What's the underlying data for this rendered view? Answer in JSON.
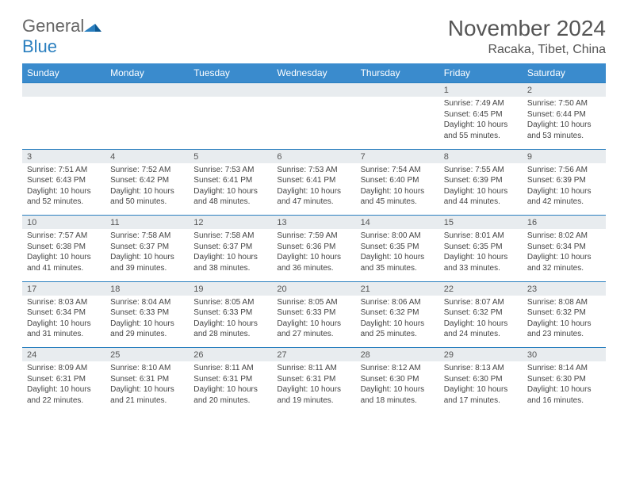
{
  "brand": {
    "general": "General",
    "blue": "Blue"
  },
  "title": "November 2024",
  "location": "Racaka, Tibet, China",
  "colors": {
    "header_bg": "#3a8bcd",
    "row_border": "#2a7fbf",
    "daynum_bg": "#e8ecef",
    "text": "#444",
    "title_color": "#555"
  },
  "day_headers": [
    "Sunday",
    "Monday",
    "Tuesday",
    "Wednesday",
    "Thursday",
    "Friday",
    "Saturday"
  ],
  "weeks": [
    [
      {
        "n": "",
        "sr": "",
        "ss": "",
        "dl": ""
      },
      {
        "n": "",
        "sr": "",
        "ss": "",
        "dl": ""
      },
      {
        "n": "",
        "sr": "",
        "ss": "",
        "dl": ""
      },
      {
        "n": "",
        "sr": "",
        "ss": "",
        "dl": ""
      },
      {
        "n": "",
        "sr": "",
        "ss": "",
        "dl": ""
      },
      {
        "n": "1",
        "sr": "Sunrise: 7:49 AM",
        "ss": "Sunset: 6:45 PM",
        "dl": "Daylight: 10 hours and 55 minutes."
      },
      {
        "n": "2",
        "sr": "Sunrise: 7:50 AM",
        "ss": "Sunset: 6:44 PM",
        "dl": "Daylight: 10 hours and 53 minutes."
      }
    ],
    [
      {
        "n": "3",
        "sr": "Sunrise: 7:51 AM",
        "ss": "Sunset: 6:43 PM",
        "dl": "Daylight: 10 hours and 52 minutes."
      },
      {
        "n": "4",
        "sr": "Sunrise: 7:52 AM",
        "ss": "Sunset: 6:42 PM",
        "dl": "Daylight: 10 hours and 50 minutes."
      },
      {
        "n": "5",
        "sr": "Sunrise: 7:53 AM",
        "ss": "Sunset: 6:41 PM",
        "dl": "Daylight: 10 hours and 48 minutes."
      },
      {
        "n": "6",
        "sr": "Sunrise: 7:53 AM",
        "ss": "Sunset: 6:41 PM",
        "dl": "Daylight: 10 hours and 47 minutes."
      },
      {
        "n": "7",
        "sr": "Sunrise: 7:54 AM",
        "ss": "Sunset: 6:40 PM",
        "dl": "Daylight: 10 hours and 45 minutes."
      },
      {
        "n": "8",
        "sr": "Sunrise: 7:55 AM",
        "ss": "Sunset: 6:39 PM",
        "dl": "Daylight: 10 hours and 44 minutes."
      },
      {
        "n": "9",
        "sr": "Sunrise: 7:56 AM",
        "ss": "Sunset: 6:39 PM",
        "dl": "Daylight: 10 hours and 42 minutes."
      }
    ],
    [
      {
        "n": "10",
        "sr": "Sunrise: 7:57 AM",
        "ss": "Sunset: 6:38 PM",
        "dl": "Daylight: 10 hours and 41 minutes."
      },
      {
        "n": "11",
        "sr": "Sunrise: 7:58 AM",
        "ss": "Sunset: 6:37 PM",
        "dl": "Daylight: 10 hours and 39 minutes."
      },
      {
        "n": "12",
        "sr": "Sunrise: 7:58 AM",
        "ss": "Sunset: 6:37 PM",
        "dl": "Daylight: 10 hours and 38 minutes."
      },
      {
        "n": "13",
        "sr": "Sunrise: 7:59 AM",
        "ss": "Sunset: 6:36 PM",
        "dl": "Daylight: 10 hours and 36 minutes."
      },
      {
        "n": "14",
        "sr": "Sunrise: 8:00 AM",
        "ss": "Sunset: 6:35 PM",
        "dl": "Daylight: 10 hours and 35 minutes."
      },
      {
        "n": "15",
        "sr": "Sunrise: 8:01 AM",
        "ss": "Sunset: 6:35 PM",
        "dl": "Daylight: 10 hours and 33 minutes."
      },
      {
        "n": "16",
        "sr": "Sunrise: 8:02 AM",
        "ss": "Sunset: 6:34 PM",
        "dl": "Daylight: 10 hours and 32 minutes."
      }
    ],
    [
      {
        "n": "17",
        "sr": "Sunrise: 8:03 AM",
        "ss": "Sunset: 6:34 PM",
        "dl": "Daylight: 10 hours and 31 minutes."
      },
      {
        "n": "18",
        "sr": "Sunrise: 8:04 AM",
        "ss": "Sunset: 6:33 PM",
        "dl": "Daylight: 10 hours and 29 minutes."
      },
      {
        "n": "19",
        "sr": "Sunrise: 8:05 AM",
        "ss": "Sunset: 6:33 PM",
        "dl": "Daylight: 10 hours and 28 minutes."
      },
      {
        "n": "20",
        "sr": "Sunrise: 8:05 AM",
        "ss": "Sunset: 6:33 PM",
        "dl": "Daylight: 10 hours and 27 minutes."
      },
      {
        "n": "21",
        "sr": "Sunrise: 8:06 AM",
        "ss": "Sunset: 6:32 PM",
        "dl": "Daylight: 10 hours and 25 minutes."
      },
      {
        "n": "22",
        "sr": "Sunrise: 8:07 AM",
        "ss": "Sunset: 6:32 PM",
        "dl": "Daylight: 10 hours and 24 minutes."
      },
      {
        "n": "23",
        "sr": "Sunrise: 8:08 AM",
        "ss": "Sunset: 6:32 PM",
        "dl": "Daylight: 10 hours and 23 minutes."
      }
    ],
    [
      {
        "n": "24",
        "sr": "Sunrise: 8:09 AM",
        "ss": "Sunset: 6:31 PM",
        "dl": "Daylight: 10 hours and 22 minutes."
      },
      {
        "n": "25",
        "sr": "Sunrise: 8:10 AM",
        "ss": "Sunset: 6:31 PM",
        "dl": "Daylight: 10 hours and 21 minutes."
      },
      {
        "n": "26",
        "sr": "Sunrise: 8:11 AM",
        "ss": "Sunset: 6:31 PM",
        "dl": "Daylight: 10 hours and 20 minutes."
      },
      {
        "n": "27",
        "sr": "Sunrise: 8:11 AM",
        "ss": "Sunset: 6:31 PM",
        "dl": "Daylight: 10 hours and 19 minutes."
      },
      {
        "n": "28",
        "sr": "Sunrise: 8:12 AM",
        "ss": "Sunset: 6:30 PM",
        "dl": "Daylight: 10 hours and 18 minutes."
      },
      {
        "n": "29",
        "sr": "Sunrise: 8:13 AM",
        "ss": "Sunset: 6:30 PM",
        "dl": "Daylight: 10 hours and 17 minutes."
      },
      {
        "n": "30",
        "sr": "Sunrise: 8:14 AM",
        "ss": "Sunset: 6:30 PM",
        "dl": "Daylight: 10 hours and 16 minutes."
      }
    ]
  ]
}
